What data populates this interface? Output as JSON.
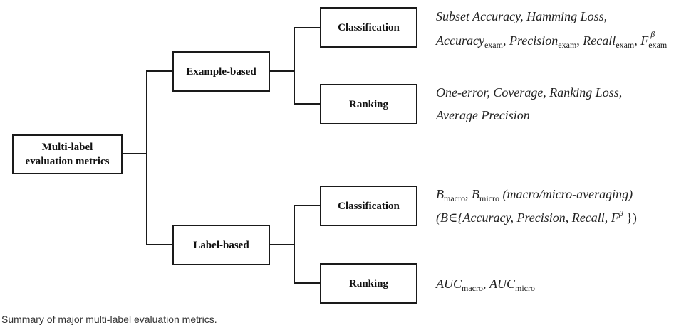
{
  "root": {
    "line1": "Multi-label",
    "line2": "evaluation metrics"
  },
  "example_based": {
    "label": "Example-based",
    "classification": {
      "label": "Classification",
      "line1": "Subset Accuracy, Hamming Loss,",
      "acc": "Accuracy",
      "prec": "Precision",
      "rec": "Recall",
      "f": "F",
      "sub": "exam",
      "beta": "β"
    },
    "ranking": {
      "label": "Ranking",
      "line1": "One-error, Coverage, Ranking Loss,",
      "line2": "Average Precision"
    }
  },
  "label_based": {
    "label": "Label-based",
    "classification": {
      "label": "Classification",
      "b": "B",
      "macro": "macro",
      "micro": "micro",
      "averaging": "(macro/micro-averaging)",
      "set_open": "(B∈{Accuracy, Precision, Recall, F",
      "beta": "β",
      "set_close": "})"
    },
    "ranking": {
      "label": "Ranking",
      "auc": "AUC",
      "macro": "macro",
      "micro": "micro"
    }
  },
  "caption": "Summary of major multi-label evaluation metrics."
}
